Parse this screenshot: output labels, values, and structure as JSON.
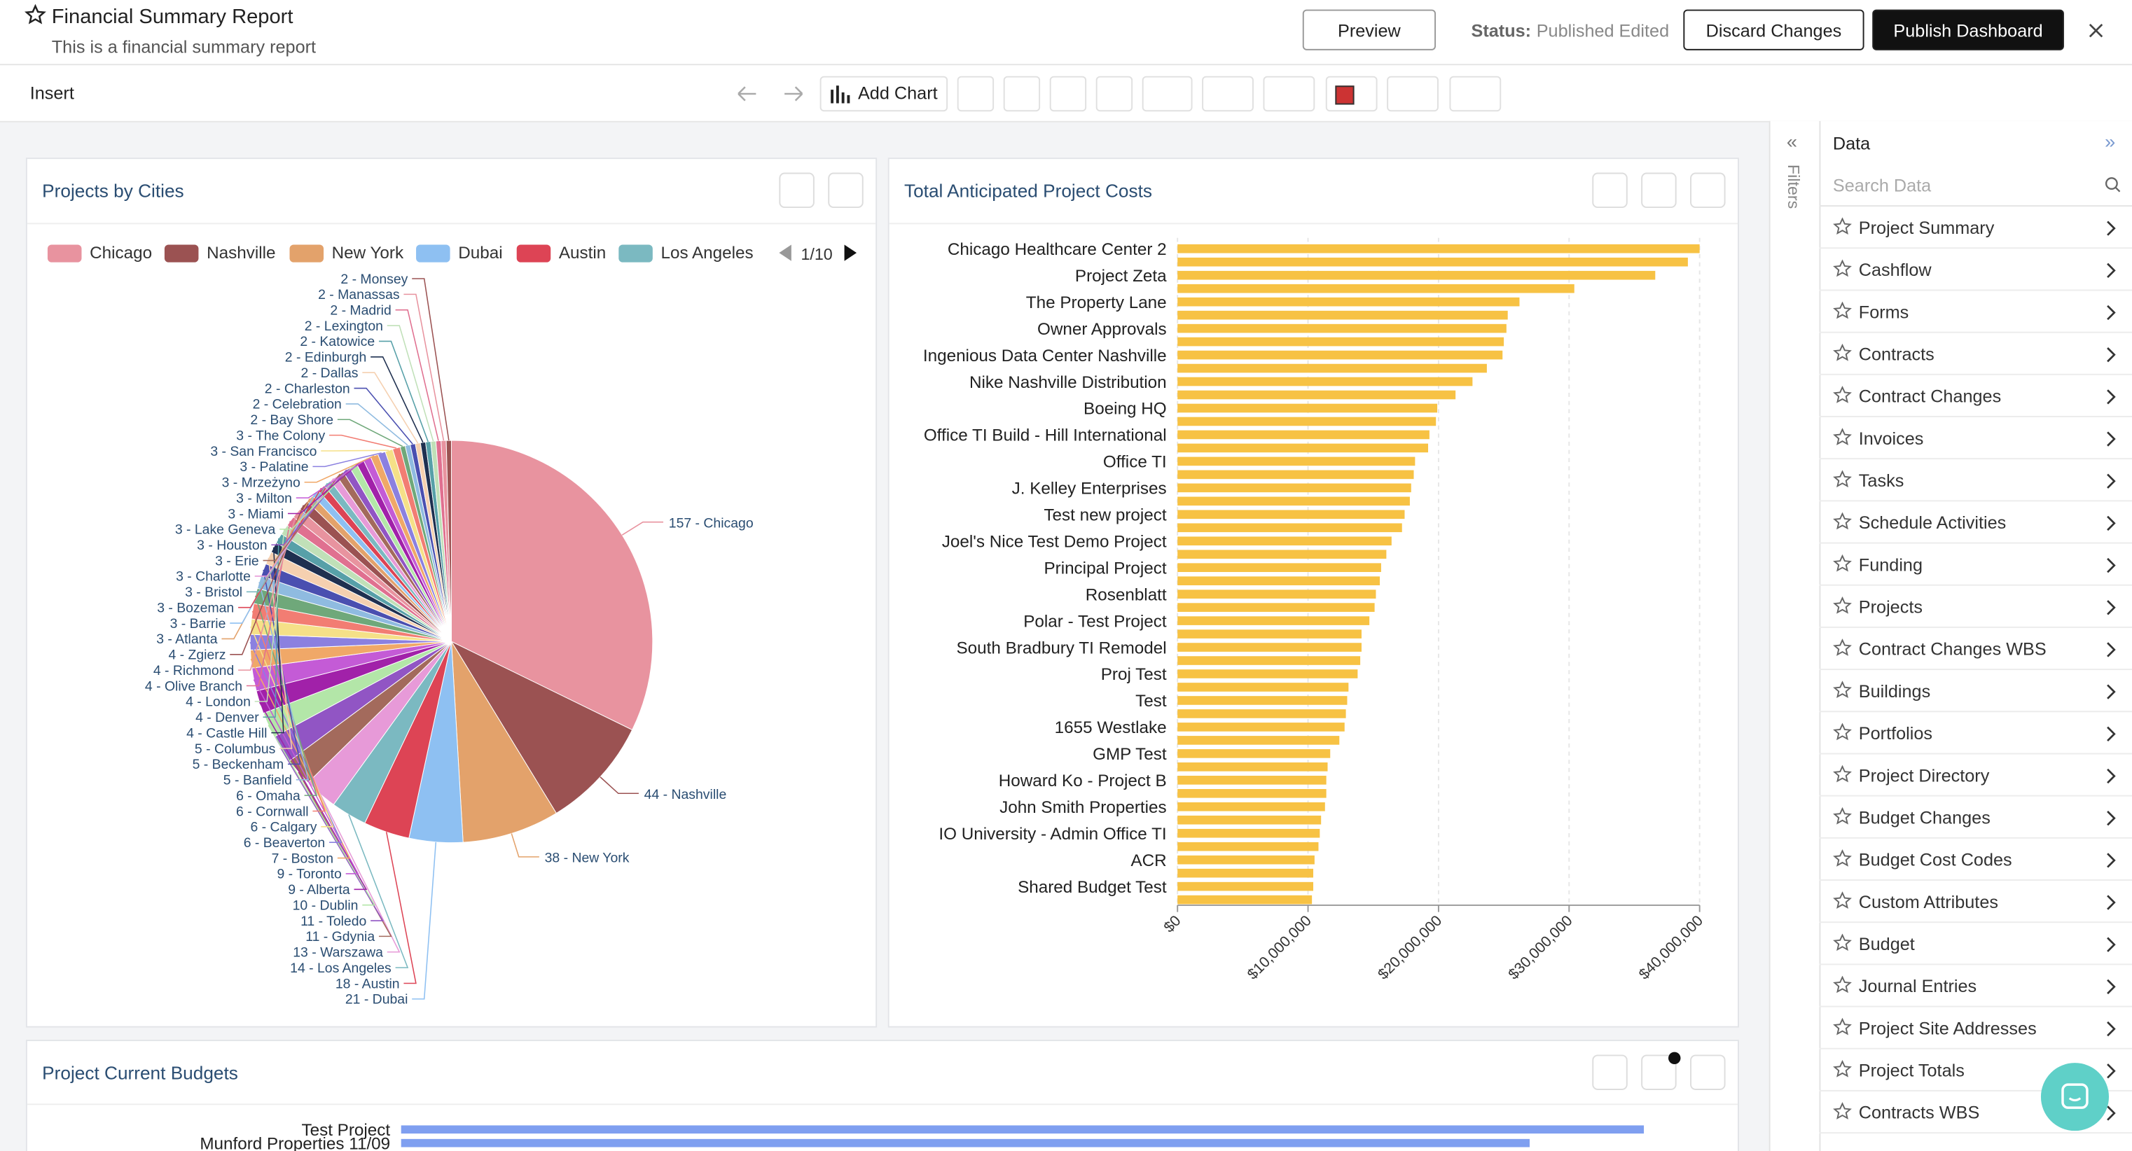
{
  "header": {
    "title": "Financial Summary Report",
    "subtitle": "This is a financial summary report",
    "preview": "Preview",
    "status_label": "Status:",
    "status": "Published Edited",
    "discard": "Discard Changes",
    "publish": "Publish Dashboard"
  },
  "toolbar": {
    "insert": "Insert",
    "add_chart": "Add Chart"
  },
  "sidebar": {
    "filters": "Filters",
    "title": "Data",
    "search_placeholder": "Search Data",
    "items": [
      "Project Summary",
      "Cashflow",
      "Forms",
      "Contracts",
      "Contract Changes",
      "Invoices",
      "Tasks",
      "Schedule Activities",
      "Funding",
      "Projects",
      "Contract Changes WBS",
      "Buildings",
      "Portfolios",
      "Project Directory",
      "Budget Changes",
      "Budget Cost Codes",
      "Custom Attributes",
      "Budget",
      "Journal Entries",
      "Project Site Addresses",
      "Project Totals",
      "Contracts WBS"
    ]
  },
  "chart_data": [
    {
      "type": "pie",
      "title": "Projects by Cities",
      "legend": {
        "items": [
          "Chicago",
          "Nashville",
          "New York",
          "Dubai",
          "Austin",
          "Los Angeles"
        ],
        "page": "1/10"
      },
      "values": [
        157,
        44,
        38,
        21,
        18,
        14,
        13,
        11,
        11,
        10,
        9,
        9,
        7,
        6,
        6,
        6,
        6,
        5,
        5,
        5,
        4,
        4,
        4,
        4,
        4,
        4,
        3,
        3,
        3,
        3,
        3,
        3,
        3,
        3,
        3,
        3,
        3,
        3,
        3,
        3,
        2,
        2,
        2,
        2,
        2,
        2,
        2,
        2,
        2,
        2
      ],
      "value_labels": [
        "157 - Chicago",
        "44 - Nashville",
        "38 - New York",
        "21 - Dubai",
        "18 - Austin",
        "14 - Los Angeles",
        "13 - Warszawa",
        "11 - Gdynia",
        "11 - Toledo",
        "10 - Dublin",
        "9 - Alberta",
        "9 - Toronto",
        "7 - Boston",
        "6 - Beaverton",
        "6 - Calgary",
        "6 - Cornwall",
        "6 - Omaha",
        "5 - Banfield",
        "5 - Beckenham",
        "5 - Columbus",
        "4 - Castle Hill",
        "4 - Denver",
        "4 - London",
        "4 - Olive Branch",
        "4 - Richmond",
        "4 - Zgierz",
        "3 - Atlanta",
        "3 - Barrie",
        "3 - Bozeman",
        "3 - Bristol",
        "3 - Charlotte",
        "3 - Erie",
        "3 - Houston",
        "3 - Lake Geneva",
        "3 - Miami",
        "3 - Milton",
        "3 - Mrzeżyno",
        "3 - Palatine",
        "3 - San Francisco",
        "3 - The Colony",
        "2 - Bay Shore",
        "2 - Celebration",
        "2 - Charleston",
        "2 - Dallas",
        "2 - Edinburgh",
        "2 - Katowice",
        "2 - Lexington",
        "2 - Madrid",
        "2 - Manassas",
        "2 - Monsey"
      ],
      "palette": [
        "#e8939f",
        "#9b5252",
        "#e3a26b",
        "#8ec0f2",
        "#dd4455",
        "#7bb9c1",
        "#e79ad8",
        "#a36a5c",
        "#9155c4",
        "#b3e6a8",
        "#a121a9",
        "#c45bd6",
        "#f0a868",
        "#8b80e0",
        "#f5e088",
        "#f27d73",
        "#6fa87a",
        "#8fbbe0",
        "#4a4fb0",
        "#f5d0b0",
        "#1f3050",
        "#57a0a8",
        "#c0e0b8",
        "#e07090"
      ]
    },
    {
      "type": "bar",
      "orientation": "horizontal",
      "title": "Total Anticipated Project Costs",
      "color": "#f7c244",
      "categories": [
        "Chicago Healthcare Center 2",
        null,
        "Project Zeta",
        null,
        "The Property Lane",
        null,
        "Owner Approvals",
        null,
        "Ingenious Data Center Nashville",
        null,
        "Nike Nashville Distribution",
        null,
        "Boeing HQ",
        null,
        "Office TI Build - Hill International",
        null,
        "Office TI",
        null,
        "J. Kelley Enterprises",
        null,
        "Test new project",
        null,
        "Joel's Nice Test Demo Project",
        null,
        "Principal Project",
        null,
        "Rosenblatt",
        null,
        "Polar - Test Project",
        null,
        "South Bradbury TI Remodel",
        null,
        "Proj Test",
        null,
        "Test",
        null,
        "1655 Westlake",
        null,
        "GMP Test",
        null,
        "Howard Ko - Project B",
        null,
        "John Smith Properties",
        null,
        "IO University - Admin Office TI",
        null,
        "ACR",
        null,
        "Shared Budget Test",
        null
      ],
      "values": [
        40000000,
        39100000,
        36600000,
        30400000,
        26200000,
        25300000,
        25200000,
        25000000,
        24900000,
        23700000,
        22600000,
        21300000,
        19900000,
        19800000,
        19300000,
        19200000,
        18200000,
        18100000,
        17900000,
        17800000,
        17400000,
        17200000,
        16400000,
        16000000,
        15600000,
        15500000,
        15200000,
        15100000,
        14700000,
        14100000,
        14100000,
        14000000,
        13800000,
        13100000,
        13000000,
        12900000,
        12800000,
        12400000,
        11700000,
        11500000,
        11400000,
        11400000,
        11300000,
        11000000,
        10900000,
        10800000,
        10500000,
        10400000,
        10400000,
        10300000
      ],
      "xlim": [
        0,
        40000000
      ],
      "xticks": [
        {
          "value": 0,
          "label": "$0"
        },
        {
          "value": 10000000,
          "label": "$10,000,000"
        },
        {
          "value": 20000000,
          "label": "$20,000,000"
        },
        {
          "value": 30000000,
          "label": "$30,000,000"
        },
        {
          "value": 40000000,
          "label": "$40,000,000"
        }
      ],
      "grid": true
    },
    {
      "type": "bar",
      "orientation": "horizontal",
      "title": "Project Current Budgets",
      "color": "#7f9ff0",
      "categories": [
        "Test Project",
        "Munford Properties 11/09"
      ],
      "values": [
        914,
        830
      ],
      "xlim": [
        0,
        1000
      ]
    }
  ]
}
